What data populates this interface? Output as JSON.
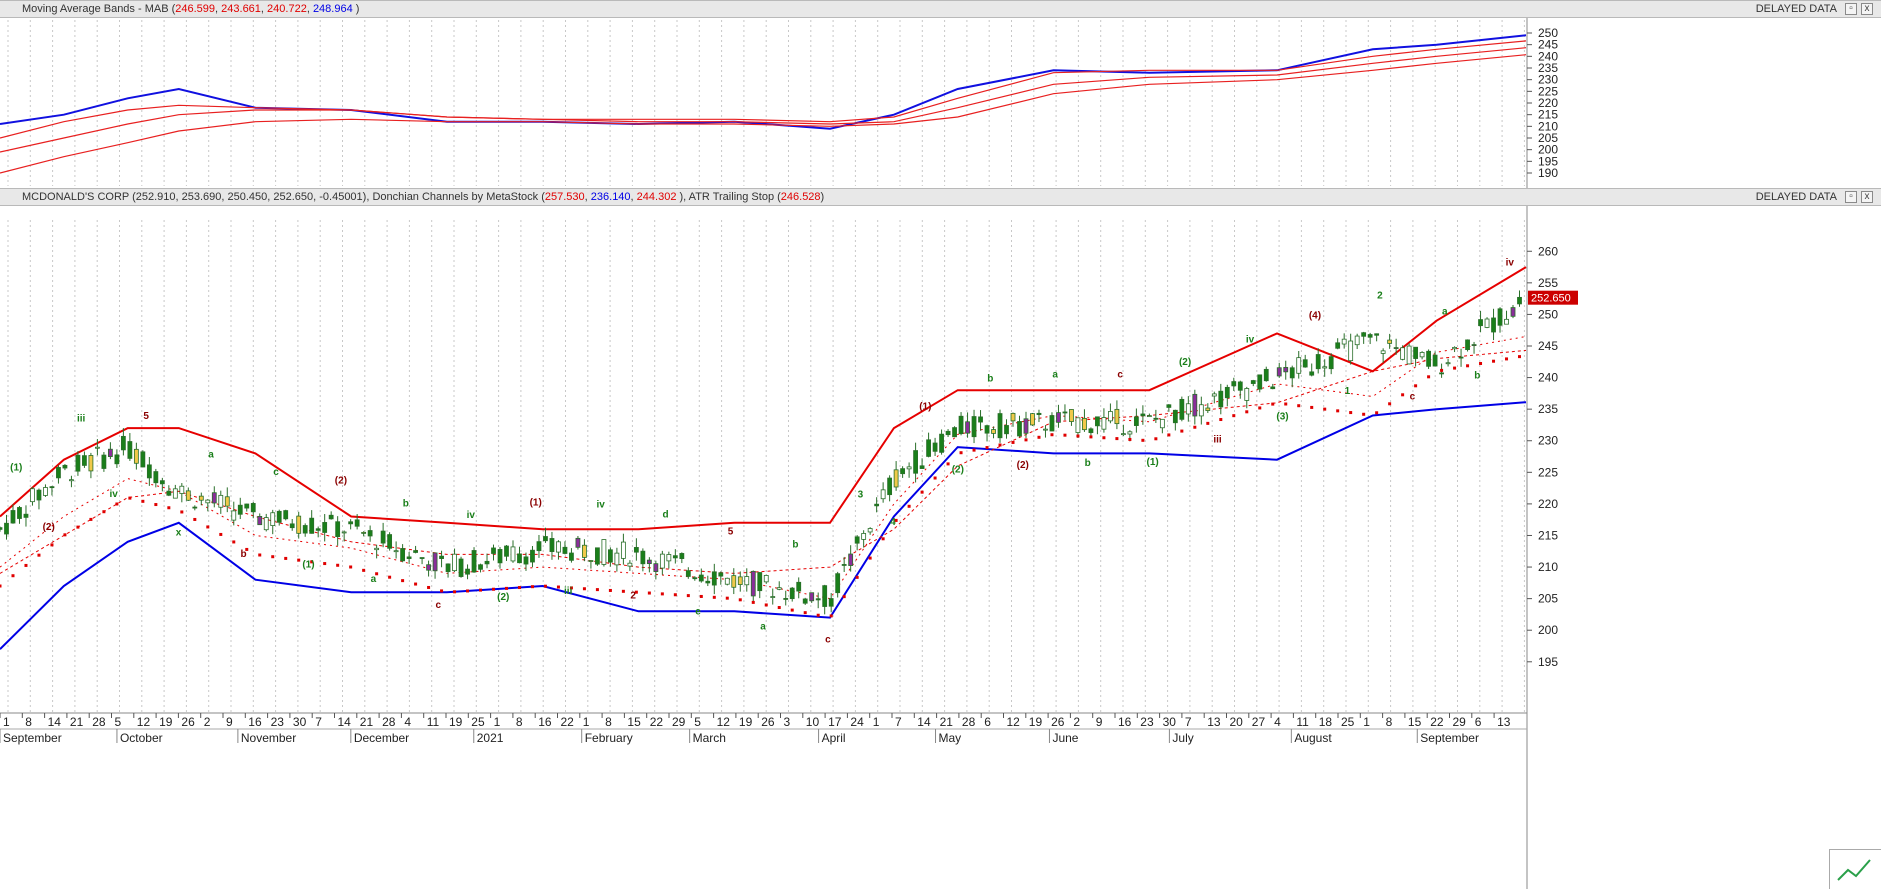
{
  "top_pane": {
    "title_prefix": "Moving Average Bands - MAB (",
    "v1": "246.599",
    "sep1": ", ",
    "v2": "243.661",
    "sep2": ", ",
    "v3": "240.722",
    "sep3": ", ",
    "v4": "248.964",
    "title_suffix": " )",
    "delayed": "DELAYED DATA",
    "btn_restore": "▫",
    "btn_close": "x"
  },
  "bottom_pane": {
    "symbol": "MCDONALD'S CORP (252.910, 253.690, 250.450, 252.650, -0.45001), ",
    "dc_label": "Donchian Channels by MetaStock (",
    "dc_v1": "257.530",
    "dc_sep1": ", ",
    "dc_v2": "236.140",
    "dc_sep2": ", ",
    "dc_v3": "244.302",
    "dc_suffix": " ), ",
    "atr_label": "ATR Trailing Stop (",
    "atr_v": "246.528",
    "atr_suffix": ")",
    "delayed": "DELAYED DATA",
    "btn_restore": "▫",
    "btn_close": "x",
    "last_price": "252.650"
  },
  "chart_data": [
    {
      "type": "line",
      "title": "Moving Average Bands - MAB",
      "ylim": [
        187,
        253
      ],
      "yticks": [
        190,
        195,
        200,
        205,
        210,
        215,
        220,
        225,
        230,
        235,
        240,
        245,
        250
      ],
      "x": [
        0,
        10,
        20,
        28,
        40,
        55,
        70,
        85,
        100,
        115,
        130,
        140,
        150,
        165,
        180,
        200,
        215,
        225,
        239
      ],
      "series": [
        {
          "color": "#1010e0",
          "values": [
            211,
            215,
            222,
            226,
            218,
            217,
            212,
            212,
            211,
            212,
            209,
            215,
            226,
            234,
            233,
            234,
            243,
            245,
            249
          ]
        },
        {
          "color": "#e82020",
          "values": [
            205,
            212,
            217,
            219,
            218,
            217,
            214,
            213,
            213,
            213,
            212,
            214,
            222,
            233,
            234,
            234,
            240,
            243,
            246.6
          ]
        },
        {
          "color": "#e82020",
          "values": [
            199,
            205,
            211,
            215,
            217,
            217,
            214,
            213,
            212,
            212,
            211,
            212,
            218,
            228,
            231,
            232,
            237,
            240,
            243.7
          ]
        },
        {
          "color": "#e82020",
          "values": [
            190,
            197,
            203,
            208,
            212,
            213,
            212,
            212,
            211,
            211,
            210,
            211,
            214,
            224,
            228,
            230,
            234,
            237,
            240.7
          ]
        }
      ]
    },
    {
      "type": "line",
      "title": "MCDONALD'S CORP",
      "ylim": [
        188,
        264
      ],
      "yticks": [
        195,
        200,
        205,
        210,
        215,
        220,
        225,
        230,
        235,
        240,
        245,
        250,
        255,
        260
      ],
      "x": [
        0,
        10,
        20,
        28,
        40,
        55,
        70,
        85,
        100,
        115,
        130,
        140,
        150,
        165,
        180,
        200,
        215,
        225,
        239
      ],
      "price": [
        216,
        225,
        229,
        222,
        218,
        216,
        210,
        213,
        212,
        208,
        205,
        224,
        232,
        233,
        233,
        240,
        246,
        242,
        252.65
      ],
      "series": [
        {
          "name": "Donchian Upper",
          "color": "#e60000",
          "values": [
            218,
            227,
            232,
            232,
            228,
            218,
            217,
            216,
            216,
            217,
            217,
            232,
            238,
            238,
            238,
            247,
            241,
            249,
            257.5
          ]
        },
        {
          "name": "Donchian Lower",
          "color": "#0000e6",
          "values": [
            197,
            207,
            214,
            217,
            208,
            206,
            206,
            207,
            203,
            203,
            202,
            218,
            229,
            228,
            228,
            227,
            234,
            235,
            236.1
          ]
        },
        {
          "name": "Donchian Mid",
          "color": "#e60000",
          "values": [
            209,
            215,
            221,
            222,
            218,
            214,
            212,
            212,
            210,
            209,
            210,
            216,
            226,
            233,
            234,
            236,
            241,
            243,
            244.3
          ]
        },
        {
          "name": "ATR Trailing Stop",
          "color": "#e60000",
          "values": [
            210,
            218,
            224,
            222,
            215,
            213,
            209,
            210,
            209,
            208,
            205,
            220,
            231,
            234,
            233,
            239,
            237,
            244,
            246.5
          ]
        }
      ],
      "x_tick_labels": [
        "1",
        "8",
        "14",
        "21",
        "28",
        "5",
        "12",
        "19",
        "26",
        "2",
        "9",
        "16",
        "23",
        "30",
        "7",
        "14",
        "21",
        "28",
        "4",
        "11",
        "19",
        "25",
        "1",
        "8",
        "16",
        "22",
        "1",
        "8",
        "15",
        "22",
        "29",
        "5",
        "12",
        "19",
        "26",
        "3",
        "10",
        "17",
        "24",
        "1",
        "7",
        "14",
        "21",
        "28",
        "6",
        "12",
        "19",
        "26",
        "2",
        "9",
        "16",
        "23",
        "30",
        "7",
        "13",
        "20",
        "27",
        "4",
        "11",
        "18",
        "25",
        "1",
        "8",
        "15",
        "22",
        "29",
        "6",
        "13"
      ],
      "month_labels": [
        "September",
        "October",
        "November",
        "December",
        "2021",
        "February",
        "March",
        "April",
        "May",
        "June",
        "July",
        "August",
        "September",
        "October",
        "November",
        "December"
      ],
      "wave_labels": [
        "(1)",
        "(2)",
        "iii",
        "iv",
        "5",
        "x",
        "a",
        "b",
        "c",
        "(1)",
        "(2)",
        "a",
        "b",
        "c",
        "iv",
        "(2)",
        "(1)",
        "iii",
        "iv",
        "2",
        "d",
        "e",
        "5",
        "a",
        "b",
        "c",
        "3",
        "4",
        "(1)",
        "(2)",
        "b",
        "(2)",
        "a",
        "b",
        "c",
        "(1)",
        "(2)",
        "iii",
        "iv",
        "(3)",
        "(4)",
        "1",
        "2",
        "c",
        "a",
        "b",
        "iv"
      ]
    }
  ]
}
